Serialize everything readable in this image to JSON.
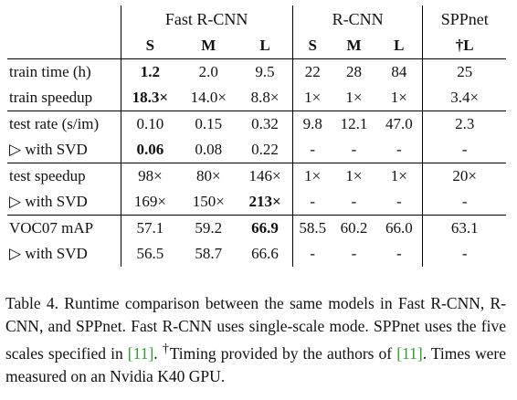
{
  "table": {
    "groups": [
      "Fast R-CNN",
      "R-CNN",
      "SPPnet"
    ],
    "subheaders": [
      "S",
      "M",
      "L",
      "S",
      "M",
      "L",
      "†L"
    ],
    "rows": [
      {
        "label": "train time (h)",
        "cells": [
          "1.2",
          "2.0",
          "9.5",
          "22",
          "28",
          "84",
          "25"
        ]
      },
      {
        "label": "train speedup",
        "cells": [
          "18.3×",
          "14.0×",
          "8.8×",
          "1×",
          "1×",
          "1×",
          "3.4×"
        ]
      },
      {
        "label": "test rate (s/im)",
        "cells": [
          "0.10",
          "0.15",
          "0.32",
          "9.8",
          "12.1",
          "47.0",
          "2.3"
        ]
      },
      {
        "label": "▷ with SVD",
        "cells": [
          "0.06",
          "0.08",
          "0.22",
          "-",
          "-",
          "-",
          "-"
        ]
      },
      {
        "label": "test speedup",
        "cells": [
          "98×",
          "80×",
          "146×",
          "1×",
          "1×",
          "1×",
          "20×"
        ]
      },
      {
        "label": "▷ with SVD",
        "cells": [
          "169×",
          "150×",
          "213×",
          "-",
          "-",
          "-",
          "-"
        ]
      },
      {
        "label": "VOC07 mAP",
        "cells": [
          "57.1",
          "59.2",
          "66.9",
          "58.5",
          "60.2",
          "66.0",
          "63.1"
        ]
      },
      {
        "label": "▷ with SVD",
        "cells": [
          "56.5",
          "58.7",
          "66.6",
          "-",
          "-",
          "-",
          "-"
        ]
      }
    ]
  },
  "caption": {
    "part1": "Table 4. Runtime comparison between the same models in Fast R-CNN, R-CNN, and SPPnet. Fast R-CNN uses single-scale mode. SPPnet uses the five scales specified in ",
    "cite1": "[11]",
    "part2": ". ",
    "dagger": "†",
    "part3": "Timing provided by the authors of ",
    "cite2": "[11]",
    "part4": ". Times were measured on an Nvidia K40 GPU."
  }
}
